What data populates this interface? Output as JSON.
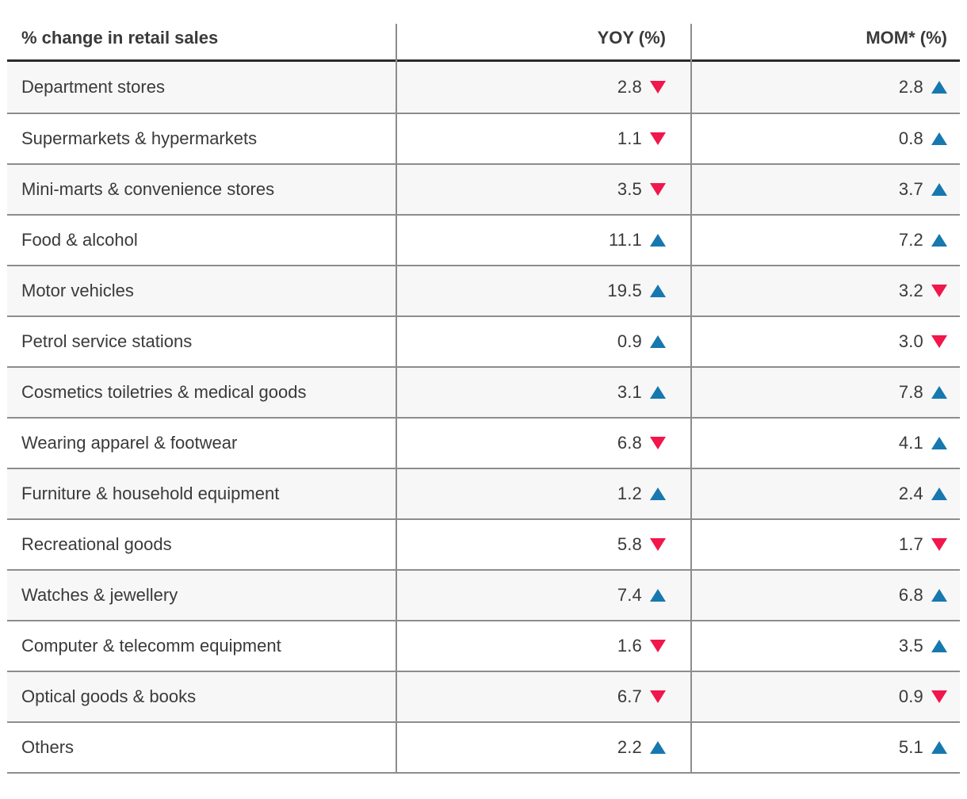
{
  "title": "% change in retail sales",
  "columns": {
    "yoy": "YOY (%)",
    "mom": "MOM* (%)"
  },
  "rows": [
    {
      "category": "Department stores",
      "yoy": "2.8",
      "yoy_dir": "down",
      "mom": "2.8",
      "mom_dir": "up"
    },
    {
      "category": "Supermarkets & hypermarkets",
      "yoy": "1.1",
      "yoy_dir": "down",
      "mom": "0.8",
      "mom_dir": "up"
    },
    {
      "category": "Mini-marts & convenience stores",
      "yoy": "3.5",
      "yoy_dir": "down",
      "mom": "3.7",
      "mom_dir": "up"
    },
    {
      "category": "Food & alcohol",
      "yoy": "11.1",
      "yoy_dir": "up",
      "mom": "7.2",
      "mom_dir": "up"
    },
    {
      "category": "Motor vehicles",
      "yoy": "19.5",
      "yoy_dir": "up",
      "mom": "3.2",
      "mom_dir": "down"
    },
    {
      "category": "Petrol service stations",
      "yoy": "0.9",
      "yoy_dir": "up",
      "mom": "3.0",
      "mom_dir": "down"
    },
    {
      "category": "Cosmetics toiletries & medical goods",
      "yoy": "3.1",
      "yoy_dir": "up",
      "mom": "7.8",
      "mom_dir": "up"
    },
    {
      "category": "Wearing apparel & footwear",
      "yoy": "6.8",
      "yoy_dir": "down",
      "mom": "4.1",
      "mom_dir": "up"
    },
    {
      "category": "Furniture & household equipment",
      "yoy": "1.2",
      "yoy_dir": "up",
      "mom": "2.4",
      "mom_dir": "up"
    },
    {
      "category": "Recreational goods",
      "yoy": "5.8",
      "yoy_dir": "down",
      "mom": "1.7",
      "mom_dir": "down"
    },
    {
      "category": "Watches & jewellery",
      "yoy": "7.4",
      "yoy_dir": "up",
      "mom": "6.8",
      "mom_dir": "up"
    },
    {
      "category": "Computer & telecomm equipment",
      "yoy": "1.6",
      "yoy_dir": "down",
      "mom": "3.5",
      "mom_dir": "up"
    },
    {
      "category": "Optical goods & books",
      "yoy": "6.7",
      "yoy_dir": "down",
      "mom": "0.9",
      "mom_dir": "down"
    },
    {
      "category": "Others",
      "yoy": "2.2",
      "yoy_dir": "up",
      "mom": "5.1",
      "mom_dir": "up"
    }
  ],
  "colors": {
    "up": "#1778af",
    "down": "#f1164b",
    "stripe": "#f7f7f7",
    "rule": "#8d8d8d",
    "dark_rule": "#2b2b2b",
    "text": "#3a3a3a"
  }
}
